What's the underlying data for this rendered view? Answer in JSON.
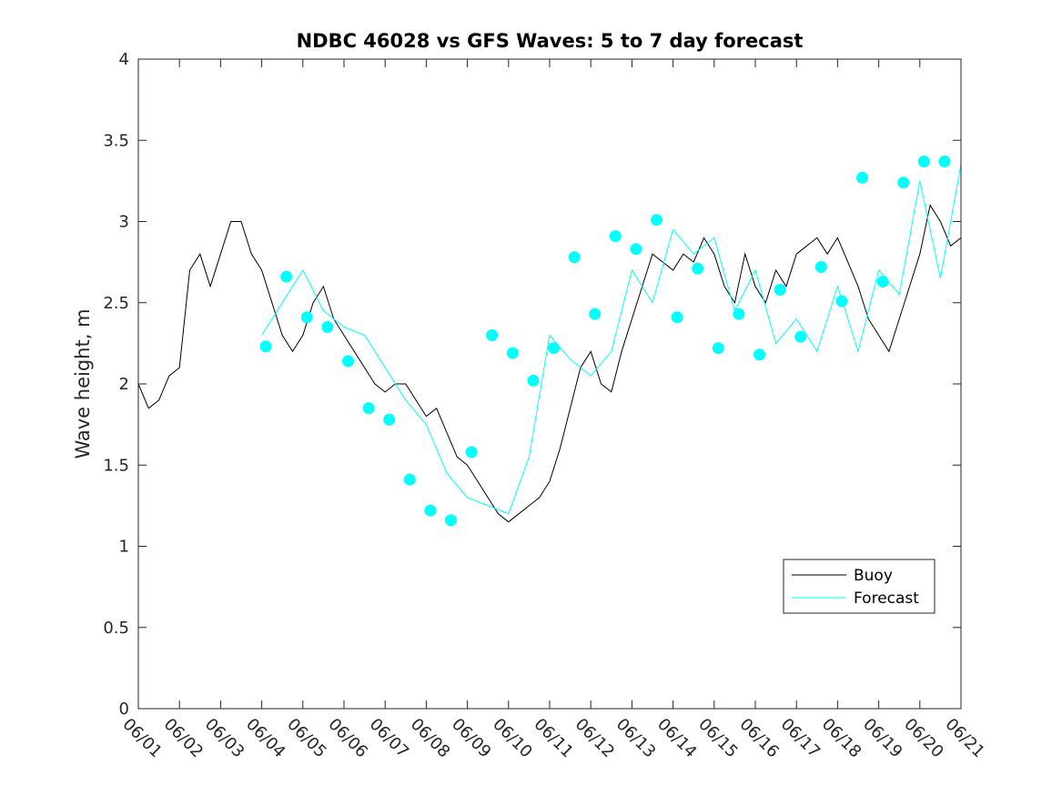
{
  "chart_data": {
    "type": "line",
    "title": "NDBC 46028 vs GFS Waves: 5 to 7 day forecast",
    "xlabel": "",
    "ylabel": "Wave height, m",
    "ylim": [
      0,
      4
    ],
    "yticks": [
      "0",
      "0.5",
      "1",
      "1.5",
      "2",
      "2.5",
      "3",
      "3.5",
      "4"
    ],
    "xlim_days": [
      0,
      20
    ],
    "xticks": [
      "06/01",
      "06/02",
      "06/03",
      "06/04",
      "06/05",
      "06/06",
      "06/07",
      "06/08",
      "06/09",
      "06/10",
      "06/11",
      "06/12",
      "06/13",
      "06/14",
      "06/15",
      "06/16",
      "06/17",
      "06/18",
      "06/19",
      "06/20",
      "06/21"
    ],
    "grid": false,
    "legend": {
      "position": "bottom-right",
      "entries": [
        "Buoy",
        "Forecast"
      ]
    },
    "colors": {
      "buoy": "#000000",
      "forecast": "#00ffff"
    },
    "series": [
      {
        "name": "Buoy",
        "x": [
          0.0,
          0.25,
          0.5,
          0.75,
          1.0,
          1.25,
          1.5,
          1.75,
          2.0,
          2.25,
          2.5,
          2.75,
          3.0,
          3.25,
          3.5,
          3.75,
          4.0,
          4.25,
          4.5,
          4.75,
          5.0,
          5.25,
          5.5,
          5.75,
          6.0,
          6.25,
          6.5,
          6.75,
          7.0,
          7.25,
          7.5,
          7.75,
          8.0,
          8.25,
          8.5,
          8.75,
          9.0,
          9.25,
          9.5,
          9.75,
          10.0,
          10.25,
          10.5,
          10.75,
          11.0,
          11.25,
          11.5,
          11.75,
          12.0,
          12.25,
          12.5,
          12.75,
          13.0,
          13.25,
          13.5,
          13.75,
          14.0,
          14.25,
          14.5,
          14.75,
          15.0,
          15.25,
          15.5,
          15.75,
          16.0,
          16.25,
          16.5,
          16.75,
          17.0,
          17.25,
          17.5,
          17.75,
          18.0,
          18.25,
          18.5,
          18.75,
          19.0,
          19.25,
          19.5,
          19.75,
          20.0
        ],
        "y": [
          2.0,
          1.85,
          1.9,
          2.05,
          2.1,
          2.7,
          2.8,
          2.6,
          2.8,
          3.0,
          3.0,
          2.8,
          2.7,
          2.5,
          2.3,
          2.2,
          2.3,
          2.5,
          2.6,
          2.4,
          2.3,
          2.2,
          2.1,
          2.0,
          1.95,
          2.0,
          2.0,
          1.9,
          1.8,
          1.85,
          1.7,
          1.55,
          1.5,
          1.4,
          1.3,
          1.2,
          1.15,
          1.2,
          1.25,
          1.3,
          1.4,
          1.6,
          1.85,
          2.1,
          2.2,
          2.0,
          1.95,
          2.2,
          2.4,
          2.6,
          2.8,
          2.75,
          2.7,
          2.8,
          2.75,
          2.9,
          2.8,
          2.6,
          2.5,
          2.8,
          2.6,
          2.5,
          2.7,
          2.6,
          2.8,
          2.85,
          2.9,
          2.8,
          2.9,
          2.75,
          2.6,
          2.4,
          2.3,
          2.2,
          2.4,
          2.6,
          2.8,
          3.1,
          3.0,
          2.85,
          2.9
        ]
      },
      {
        "name": "Forecast",
        "x": [
          3.0,
          3.5,
          4.0,
          4.5,
          5.0,
          5.5,
          6.0,
          6.5,
          7.0,
          7.5,
          8.0,
          8.5,
          9.0,
          9.5,
          10.0,
          10.5,
          11.0,
          11.5,
          12.0,
          12.5,
          13.0,
          13.5,
          14.0,
          14.5,
          15.0,
          15.5,
          16.0,
          16.5,
          17.0,
          17.5,
          18.0,
          18.5,
          19.0,
          19.5,
          20.0
        ],
        "y": [
          2.3,
          2.5,
          2.7,
          2.45,
          2.35,
          2.3,
          2.1,
          1.9,
          1.75,
          1.45,
          1.3,
          1.25,
          1.2,
          1.55,
          2.3,
          2.15,
          2.05,
          2.2,
          2.7,
          2.5,
          2.95,
          2.8,
          2.9,
          2.45,
          2.7,
          2.25,
          2.4,
          2.2,
          2.6,
          2.2,
          2.7,
          2.55,
          3.25,
          2.65,
          3.35
        ]
      }
    ],
    "markers": {
      "x": [
        3.1,
        3.6,
        4.1,
        4.6,
        5.1,
        5.6,
        6.1,
        6.6,
        7.1,
        7.6,
        8.1,
        8.6,
        9.1,
        9.6,
        10.1,
        10.6,
        11.1,
        11.6,
        12.1,
        12.6,
        13.1,
        13.6,
        14.1,
        14.6,
        15.1,
        15.6,
        16.1,
        16.6,
        17.1,
        17.6,
        18.1,
        18.6,
        19.1,
        19.6
      ],
      "y": [
        2.23,
        2.66,
        2.41,
        2.35,
        2.14,
        1.85,
        1.78,
        1.41,
        1.22,
        1.16,
        1.58,
        2.3,
        2.19,
        2.02,
        2.22,
        2.78,
        2.43,
        2.91,
        2.83,
        3.01,
        2.41,
        2.71,
        2.22,
        2.43,
        2.18,
        2.58,
        2.29,
        2.72,
        2.51,
        3.27,
        2.63,
        3.24,
        3.37,
        3.37
      ]
    }
  }
}
